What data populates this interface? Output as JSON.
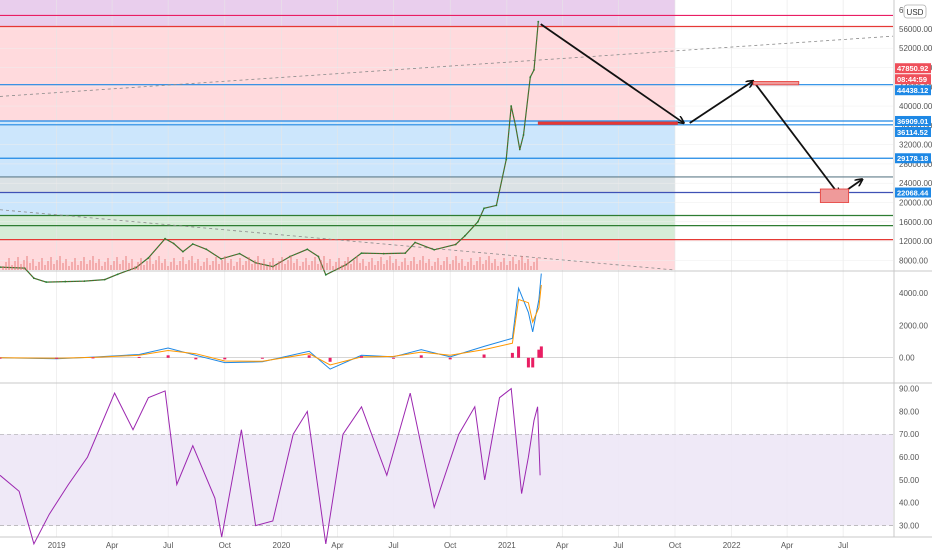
{
  "currency": "USD",
  "chart_data": [
    {
      "type": "line",
      "pane": "price",
      "title": "",
      "ylim": [
        6000,
        62000
      ],
      "price_axis_ticks": [
        8000,
        12000,
        16000,
        20000,
        24000,
        28000,
        32000,
        36000,
        40000,
        44000,
        48000,
        52000,
        56000
      ],
      "price_axis_tick_labels": [
        "8000.00",
        "12000.00",
        "16000.00",
        "20000.00",
        "24000.00",
        "28000.00",
        "32000.00",
        "36000.00",
        "40000.00",
        "44000.00",
        "48000.00",
        "52000.00",
        "56000.00"
      ],
      "price_axis_top_label": "6",
      "badges": [
        {
          "value": 47850.92,
          "label": "47850.92",
          "color": "#ef4f5a"
        },
        {
          "value": 46800,
          "label": "08:44:59",
          "color": "#ef4f5a"
        },
        {
          "value": 44438.12,
          "label": "44438.12",
          "color": "#1e88e5"
        },
        {
          "value": 36909.01,
          "label": "36909.01",
          "color": "#1e88e5"
        },
        {
          "value": 36114.52,
          "label": "36114.52",
          "color": "#1e88e5"
        },
        {
          "value": 29178.18,
          "label": "29178.18",
          "color": "#1e88e5"
        },
        {
          "value": 22068.44,
          "label": "22068.44",
          "color": "#1e88e5"
        }
      ],
      "horizontal_levels": [
        {
          "value": 58800,
          "color": "#e91e63"
        },
        {
          "value": 56500,
          "color": "#e53935"
        },
        {
          "value": 44438.12,
          "color": "#1e88e5"
        },
        {
          "value": 36909.01,
          "color": "#1e88e5"
        },
        {
          "value": 36114.52,
          "color": "#1e88e5"
        },
        {
          "value": 29178.18,
          "color": "#1e88e5"
        },
        {
          "value": 25300,
          "color": "#607d8b"
        },
        {
          "value": 22068.44,
          "color": "#3f51b5"
        },
        {
          "value": 17300,
          "color": "#2e7d32"
        },
        {
          "value": 15200,
          "color": "#2e7d32"
        },
        {
          "value": 12300,
          "color": "#e53935"
        }
      ],
      "zones": [
        {
          "from": 56500,
          "to": 62000,
          "color": "#e1bee7"
        },
        {
          "from": 36909.01,
          "to": 56500,
          "color": "#ffcdd2"
        },
        {
          "from": 25300,
          "to": 36909.01,
          "color": "#bbdefb"
        },
        {
          "from": 22068.44,
          "to": 25300,
          "color": "#cfd8dc"
        },
        {
          "from": 17300,
          "to": 22068.44,
          "color": "#bbdefb"
        },
        {
          "from": 12300,
          "to": 17300,
          "color": "#c8e6c9"
        },
        {
          "from": 6000,
          "to": 12300,
          "color": "#ffcdd2"
        }
      ],
      "series": [
        {
          "values": [
            [
              "2018-10-01",
              6600
            ],
            [
              "2018-11-10",
              6400
            ],
            [
              "2018-11-25",
              4300
            ],
            [
              "2018-12-15",
              3500
            ],
            [
              "2019-01-15",
              3600
            ],
            [
              "2019-02-15",
              3700
            ],
            [
              "2019-03-20",
              4000
            ],
            [
              "2019-04-10",
              5100
            ],
            [
              "2019-05-10",
              6500
            ],
            [
              "2019-05-30",
              8500
            ],
            [
              "2019-06-26",
              12500
            ],
            [
              "2019-07-10",
              11500
            ],
            [
              "2019-07-25",
              9800
            ],
            [
              "2019-08-10",
              11400
            ],
            [
              "2019-09-01",
              10300
            ],
            [
              "2019-09-25",
              8300
            ],
            [
              "2019-10-25",
              9400
            ],
            [
              "2019-11-20",
              7500
            ],
            [
              "2019-12-18",
              6700
            ],
            [
              "2020-01-15",
              8800
            ],
            [
              "2020-02-12",
              10300
            ],
            [
              "2020-03-01",
              8800
            ],
            [
              "2020-03-13",
              5000
            ],
            [
              "2020-04-15",
              7100
            ],
            [
              "2020-05-10",
              9500
            ],
            [
              "2020-06-15",
              9400
            ],
            [
              "2020-07-20",
              9500
            ],
            [
              "2020-08-05",
              11700
            ],
            [
              "2020-09-05",
              10200
            ],
            [
              "2020-10-10",
              11300
            ],
            [
              "2020-10-25",
              13100
            ],
            [
              "2020-11-15",
              16000
            ],
            [
              "2020-11-25",
              18800
            ],
            [
              "2020-12-15",
              19400
            ],
            [
              "2020-12-31",
              28900
            ],
            [
              "2021-01-08",
              40000
            ],
            [
              "2021-01-15",
              36000
            ],
            [
              "2021-01-22",
              31000
            ],
            [
              "2021-01-28",
              34000
            ],
            [
              "2021-02-08",
              46000
            ],
            [
              "2021-02-14",
              47500
            ],
            [
              "2021-02-21",
              57500
            ]
          ]
        }
      ],
      "annotations": [
        {
          "type": "arrow",
          "from": [
            "2021-02-25",
            57000
          ],
          "to": [
            "2021-10-15",
            36500
          ]
        },
        {
          "type": "arrow",
          "from": [
            "2021-10-25",
            36500
          ],
          "to": [
            "2022-02-05",
            45200
          ]
        },
        {
          "type": "arrow",
          "from": [
            "2022-02-05",
            45200
          ],
          "to": [
            "2022-06-25",
            21500
          ]
        },
        {
          "type": "arrow",
          "from": [
            "2022-06-25",
            21500
          ],
          "to": [
            "2022-08-01",
            24800
          ]
        },
        {
          "type": "rectangle",
          "from": [
            "2022-02-05",
            45100
          ],
          "to": [
            "2022-04-20",
            44400
          ],
          "color": "#ef9a9a"
        },
        {
          "type": "rectangle",
          "from": [
            "2022-05-25",
            22800
          ],
          "to": [
            "2022-07-10",
            20000
          ],
          "color": "#ef9a9a"
        },
        {
          "type": "rectangle",
          "from": [
            "2021-02-21",
            36700
          ],
          "to": [
            "2021-10-05",
            36200
          ],
          "color": "#e53935"
        },
        {
          "type": "dashed-line",
          "from": [
            "2018-10-01",
            42000
          ],
          "to": [
            "2022-09-20",
            54500
          ]
        },
        {
          "type": "dashed-line",
          "from": [
            "2018-10-01",
            18500
          ],
          "to": [
            "2021-10-01",
            6000
          ]
        }
      ]
    },
    {
      "type": "line",
      "pane": "macd",
      "ylim": [
        -1500,
        5300
      ],
      "yticks": [
        0,
        2000,
        4000
      ],
      "ytick_labels": [
        "0.00",
        "2000.00",
        "4000.00"
      ],
      "series": [
        {
          "name": "",
          "values": [
            [
              "2018-10-01",
              0
            ],
            [
              "2019-01-01",
              -60
            ],
            [
              "2019-03-01",
              40
            ],
            [
              "2019-05-15",
              200
            ],
            [
              "2019-07-01",
              600
            ],
            [
              "2019-08-15",
              150
            ],
            [
              "2019-10-01",
              -300
            ],
            [
              "2019-12-01",
              -250
            ],
            [
              "2020-02-15",
              400
            ],
            [
              "2020-03-20",
              -700
            ],
            [
              "2020-05-10",
              150
            ],
            [
              "2020-07-01",
              60
            ],
            [
              "2020-08-15",
              500
            ],
            [
              "2020-10-01",
              50
            ],
            [
              "2020-11-25",
              700
            ],
            [
              "2021-01-10",
              1200
            ],
            [
              "2021-01-20",
              4300
            ],
            [
              "2021-02-05",
              2800
            ],
            [
              "2021-02-12",
              1600
            ],
            [
              "2021-02-22",
              3600
            ],
            [
              "2021-02-26",
              5200
            ]
          ]
        },
        {
          "name": "",
          "values": [
            [
              "2018-10-01",
              0
            ],
            [
              "2019-01-01",
              -30
            ],
            [
              "2019-03-01",
              20
            ],
            [
              "2019-05-15",
              150
            ],
            [
              "2019-07-01",
              450
            ],
            [
              "2019-08-15",
              250
            ],
            [
              "2019-10-01",
              -200
            ],
            [
              "2019-12-01",
              -220
            ],
            [
              "2020-02-15",
              250
            ],
            [
              "2020-03-20",
              -450
            ],
            [
              "2020-05-10",
              50
            ],
            [
              "2020-07-01",
              80
            ],
            [
              "2020-08-15",
              350
            ],
            [
              "2020-10-01",
              150
            ],
            [
              "2020-11-25",
              500
            ],
            [
              "2021-01-10",
              900
            ],
            [
              "2021-01-20",
              3600
            ],
            [
              "2021-02-05",
              3400
            ],
            [
              "2021-02-12",
              2200
            ],
            [
              "2021-02-22",
              3100
            ],
            [
              "2021-02-26",
              4500
            ]
          ]
        }
      ],
      "histogram_color": "#e91e63"
    },
    {
      "type": "line",
      "pane": "rsi",
      "ylim": [
        25,
        92
      ],
      "yticks": [
        30,
        40,
        50,
        60,
        70,
        80,
        90
      ],
      "ytick_labels": [
        "30.00",
        "40.00",
        "50.00",
        "60.00",
        "70.00",
        "80.00",
        "90.00"
      ],
      "band": [
        30,
        70
      ],
      "series": [
        {
          "name": "",
          "color": "#9c27b0",
          "values": [
            [
              "2018-10-01",
              52
            ],
            [
              "2018-11-01",
              45
            ],
            [
              "2018-11-25",
              22
            ],
            [
              "2018-12-20",
              35
            ],
            [
              "2019-01-20",
              48
            ],
            [
              "2019-02-20",
              60
            ],
            [
              "2019-04-05",
              88
            ],
            [
              "2019-05-05",
              72
            ],
            [
              "2019-05-30",
              86
            ],
            [
              "2019-06-26",
              89
            ],
            [
              "2019-07-15",
              48
            ],
            [
              "2019-08-10",
              65
            ],
            [
              "2019-09-15",
              42
            ],
            [
              "2019-09-26",
              25
            ],
            [
              "2019-10-28",
              72
            ],
            [
              "2019-11-20",
              30
            ],
            [
              "2019-12-18",
              32
            ],
            [
              "2020-01-20",
              70
            ],
            [
              "2020-02-12",
              80
            ],
            [
              "2020-03-13",
              22
            ],
            [
              "2020-04-10",
              70
            ],
            [
              "2020-05-10",
              82
            ],
            [
              "2020-06-20",
              52
            ],
            [
              "2020-07-28",
              88
            ],
            [
              "2020-09-05",
              38
            ],
            [
              "2020-10-15",
              70
            ],
            [
              "2020-11-10",
              82
            ],
            [
              "2020-11-26",
              50
            ],
            [
              "2020-12-20",
              86
            ],
            [
              "2021-01-08",
              90
            ],
            [
              "2021-01-25",
              44
            ],
            [
              "2021-02-05",
              60
            ],
            [
              "2021-02-14",
              76
            ],
            [
              "2021-02-20",
              82
            ],
            [
              "2021-02-24",
              52
            ]
          ]
        }
      ]
    }
  ],
  "time_axis": {
    "ticks": [
      "2019-01-01",
      "2019-04-01",
      "2019-07-01",
      "2019-10-01",
      "2020-01-01",
      "2020-04-01",
      "2020-07-01",
      "2020-10-01",
      "2021-01-01",
      "2021-04-01",
      "2021-07-01",
      "2021-10-01",
      "2022-01-01",
      "2022-04-01",
      "2022-07-01"
    ],
    "labels": [
      "2019",
      "Apr",
      "Jul",
      "Oct",
      "2020",
      "Apr",
      "Jul",
      "Oct",
      "2021",
      "Apr",
      "Jul",
      "Oct",
      "2022",
      "Apr",
      "Jul"
    ]
  }
}
